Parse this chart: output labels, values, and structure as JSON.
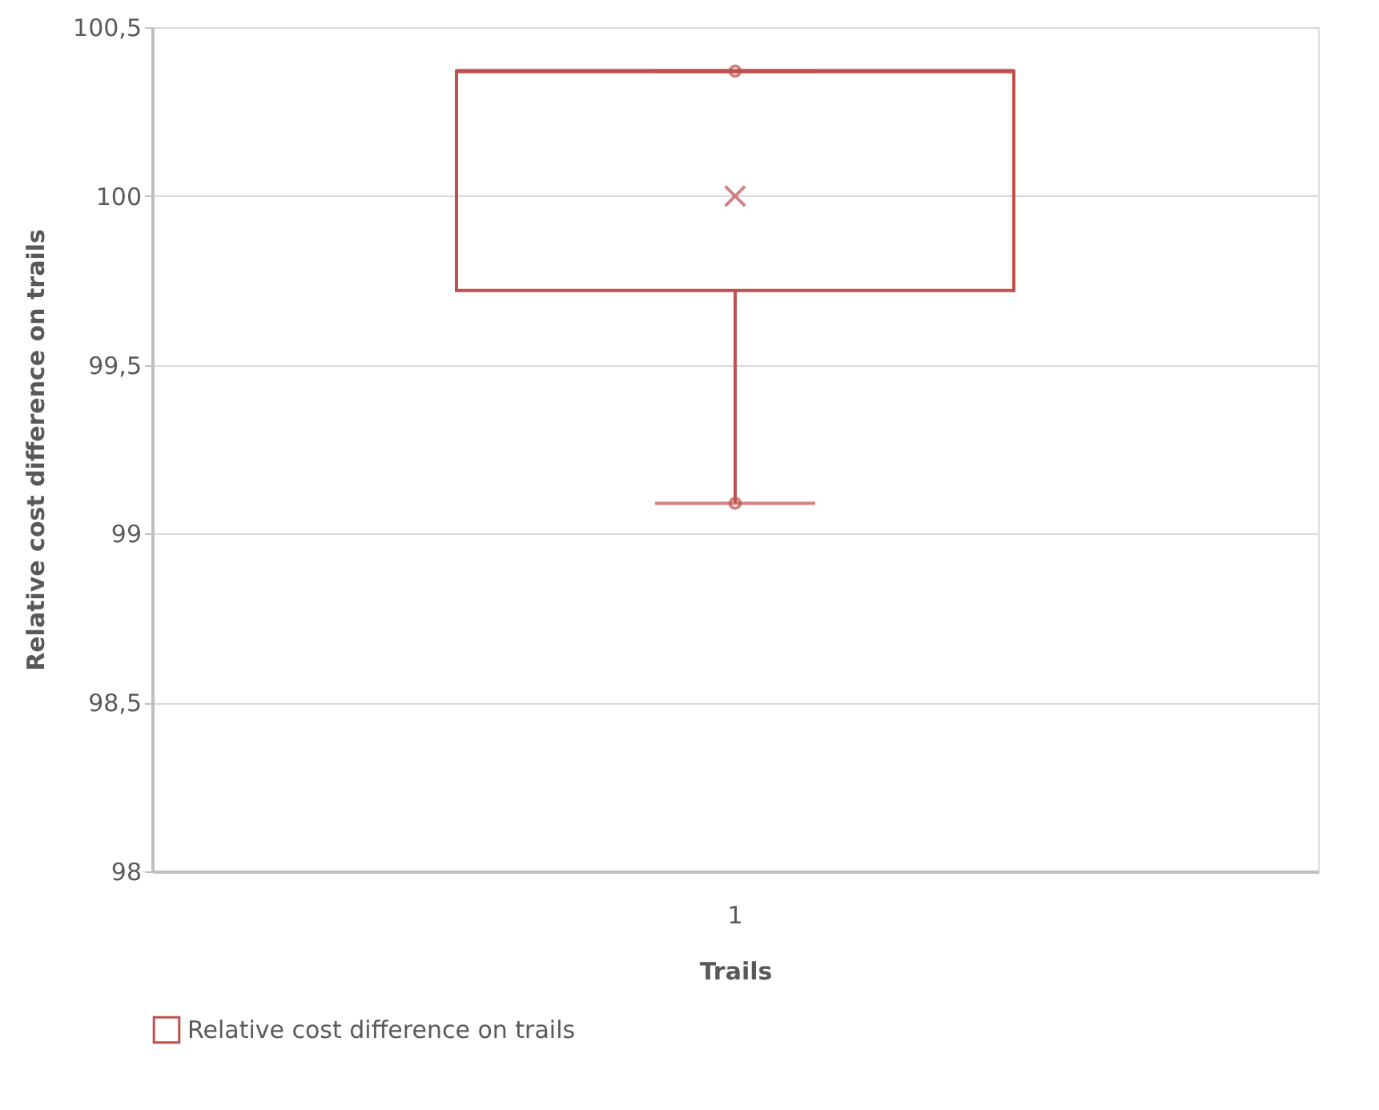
{
  "chart_data": {
    "type": "box",
    "xlabel": "Trails",
    "ylabel": "Relative cost difference on trails",
    "categories": [
      "1"
    ],
    "series": [
      {
        "name": "Relative cost difference on trails",
        "color": "#c0504d",
        "boxes": [
          {
            "low": 99.09,
            "q1": 99.72,
            "median": 100.37,
            "q3": 100.37,
            "high": 100.37,
            "mean": 100
          }
        ]
      },
      {
        "type": "scatter",
        "color": "#c0504d",
        "x": [
          "1",
          "1"
        ],
        "values": [
          100.37,
          99.09
        ]
      }
    ],
    "ylim": [
      98,
      100.5
    ],
    "yticks": [
      98,
      {
        "value": 98.5,
        "label": "98,5"
      },
      99,
      {
        "value": 99.5,
        "label": "99,5"
      },
      100,
      {
        "value": 100.5,
        "label": "100,5"
      }
    ],
    "grid": "y",
    "legend": "bottom",
    "marker": "circle"
  }
}
